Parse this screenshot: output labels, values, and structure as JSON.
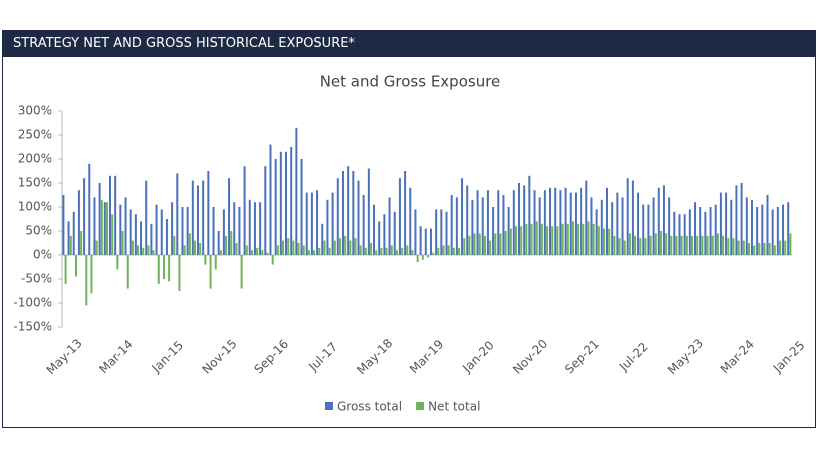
{
  "header": {
    "title": "STRATEGY NET AND GROSS HISTORICAL EXPOSURE*"
  },
  "chart_data": {
    "type": "bar",
    "title": "Net and Gross Exposure",
    "categories": [
      "May-13",
      null,
      null,
      null,
      null,
      null,
      null,
      null,
      null,
      null,
      "Mar-14",
      null,
      null,
      null,
      null,
      null,
      null,
      null,
      null,
      null,
      "Jan-15",
      null,
      null,
      null,
      null,
      null,
      null,
      null,
      null,
      null,
      "Nov-15",
      null,
      null,
      null,
      null,
      null,
      null,
      null,
      null,
      null,
      "Sep-16",
      null,
      null,
      null,
      null,
      null,
      null,
      null,
      null,
      null,
      "Jul-17",
      null,
      null,
      null,
      null,
      null,
      null,
      null,
      null,
      null,
      "May-18",
      null,
      null,
      null,
      null,
      null,
      null,
      null,
      null,
      null,
      "Mar-19",
      null,
      null,
      null,
      null,
      null,
      null,
      null,
      null,
      null,
      "Jan-20",
      null,
      null,
      null,
      null,
      null,
      null,
      null,
      null,
      null,
      "Nov-20",
      null,
      null,
      null,
      null,
      null,
      null,
      null,
      null,
      null,
      "Sep-21",
      null,
      null,
      null,
      null,
      null,
      null,
      null,
      null,
      null,
      "Jul-22",
      null,
      null,
      null,
      null,
      null,
      null,
      null,
      null,
      null,
      "May-23",
      null,
      null,
      null,
      null,
      null,
      null,
      null,
      null,
      null,
      "Mar-24",
      null,
      null,
      null,
      null,
      null,
      null,
      null,
      null,
      null,
      "Jan-25"
    ],
    "series": [
      {
        "name": "Gross total",
        "color": "#4a72b8",
        "values": [
          125,
          70,
          90,
          135,
          160,
          190,
          120,
          150,
          110,
          165,
          165,
          105,
          120,
          95,
          85,
          70,
          155,
          65,
          105,
          95,
          75,
          110,
          170,
          100,
          100,
          155,
          145,
          155,
          175,
          100,
          50,
          95,
          160,
          110,
          100,
          185,
          115,
          110,
          110,
          185,
          230,
          200,
          215,
          215,
          225,
          265,
          200,
          130,
          130,
          135,
          65,
          115,
          130,
          160,
          175,
          185,
          175,
          155,
          125,
          180,
          105,
          70,
          85,
          120,
          90,
          160,
          175,
          140,
          95,
          60,
          55,
          55,
          95,
          95,
          90,
          125,
          120,
          160,
          145,
          115,
          135,
          120,
          135,
          100,
          135,
          125,
          100,
          135,
          150,
          145,
          165,
          135,
          120,
          135,
          140,
          140,
          135,
          140,
          130,
          130,
          140,
          155,
          120,
          95,
          115,
          140,
          110,
          130,
          120,
          160,
          155,
          130,
          105,
          105,
          120,
          140,
          145,
          120,
          90,
          85,
          85,
          95,
          110,
          100,
          90,
          100,
          105,
          130,
          130,
          115,
          145,
          150,
          120,
          115,
          100,
          105,
          125,
          95,
          100,
          105,
          110
        ]
      },
      {
        "name": "Net total",
        "color": "#6fb35a",
        "values": [
          -60,
          40,
          -45,
          50,
          -105,
          -80,
          30,
          115,
          110,
          85,
          -30,
          50,
          -70,
          30,
          20,
          15,
          20,
          10,
          -60,
          -50,
          -55,
          40,
          -75,
          20,
          45,
          30,
          25,
          -20,
          -70,
          -30,
          10,
          40,
          50,
          25,
          -70,
          20,
          10,
          15,
          10,
          5,
          -20,
          20,
          30,
          35,
          30,
          25,
          20,
          10,
          10,
          15,
          30,
          15,
          30,
          35,
          40,
          30,
          35,
          20,
          15,
          25,
          10,
          15,
          15,
          20,
          10,
          15,
          20,
          10,
          -15,
          -10,
          -5,
          5,
          15,
          20,
          20,
          15,
          15,
          35,
          40,
          45,
          45,
          40,
          30,
          45,
          45,
          50,
          55,
          60,
          60,
          65,
          65,
          70,
          65,
          60,
          60,
          60,
          65,
          65,
          70,
          65,
          65,
          70,
          65,
          60,
          55,
          55,
          40,
          35,
          30,
          45,
          40,
          35,
          35,
          40,
          45,
          50,
          45,
          40,
          40,
          40,
          40,
          40,
          40,
          40,
          40,
          40,
          45,
          40,
          35,
          35,
          30,
          30,
          25,
          20,
          25,
          25,
          25,
          20,
          30,
          30,
          45
        ]
      }
    ],
    "ylim": [
      -150,
      300
    ],
    "yticks": [
      {
        "value": -150,
        "label": "-150%"
      },
      {
        "value": -100,
        "label": "-100%"
      },
      {
        "value": -50,
        "label": "-50%"
      },
      {
        "value": 0,
        "label": "0%"
      },
      {
        "value": 50,
        "label": "50%"
      },
      {
        "value": 100,
        "label": "100%"
      },
      {
        "value": 150,
        "label": "150%"
      },
      {
        "value": 200,
        "label": "200%"
      },
      {
        "value": 250,
        "label": "250%"
      },
      {
        "value": 300,
        "label": "300%"
      }
    ],
    "legend": "bottom"
  }
}
